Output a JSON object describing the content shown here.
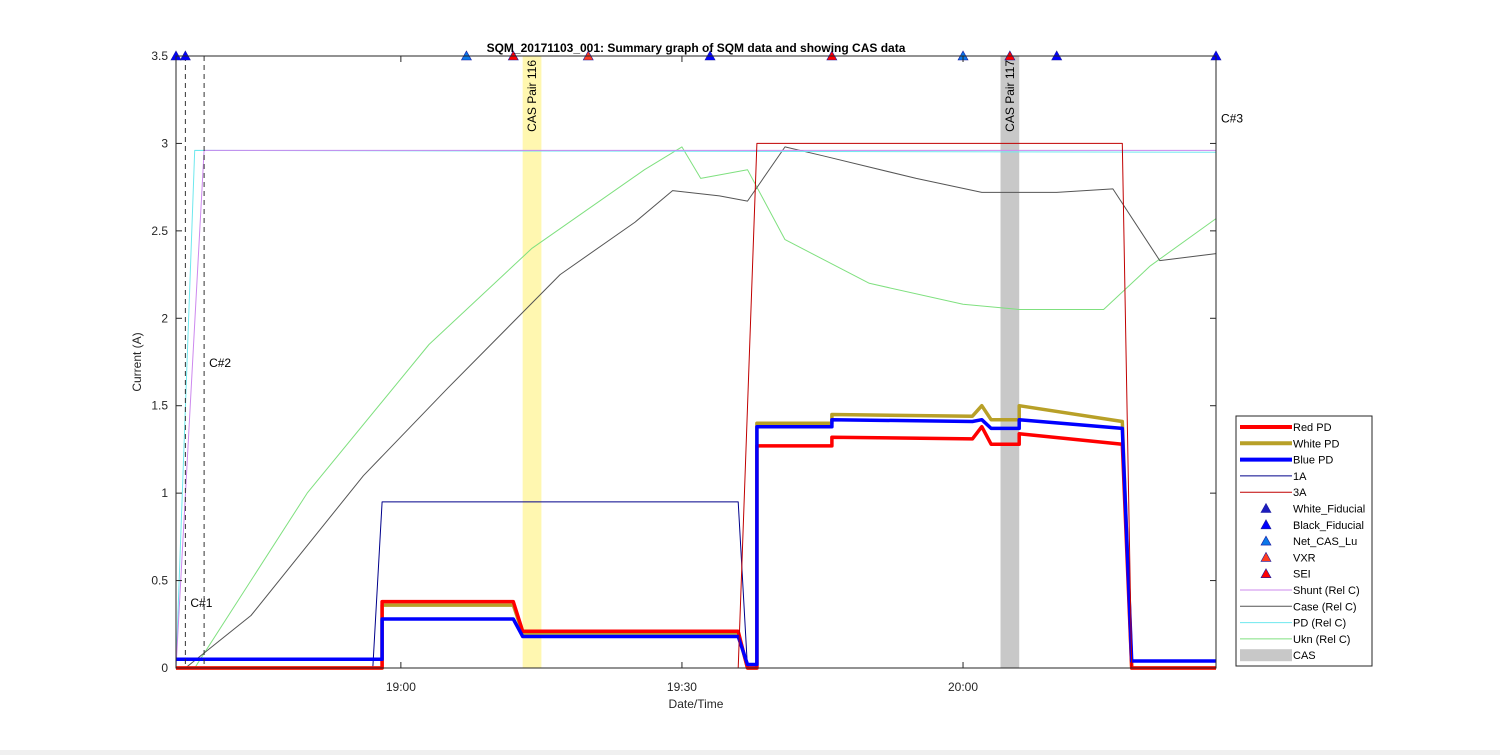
{
  "chart_data": {
    "type": "line",
    "title": "SQM_20171103_001: Summary graph of SQM data and showing CAS data",
    "xlabel": "Date/Time",
    "ylabel": "Current (A)",
    "x_unit": "time (HH:MM)",
    "xlim": [
      "18:36",
      "20:27"
    ],
    "ylim": [
      0,
      3.5
    ],
    "yticks": [
      0,
      0.5,
      1,
      1.5,
      2,
      2.5,
      3,
      3.5
    ],
    "ytick_labels": [
      "0",
      "0.5",
      "1",
      "1.5",
      "2",
      "2.5",
      "3",
      "3.5"
    ],
    "xticks": [
      "19:00",
      "19:30",
      "20:00"
    ],
    "grid": false,
    "legend_position": "right, outside",
    "legend": [
      {
        "label": "Red PD",
        "kind": "thick-line",
        "color": "#ff0000"
      },
      {
        "label": "White PD",
        "kind": "thick-line",
        "color": "#b8a028"
      },
      {
        "label": "Blue PD",
        "kind": "thick-line",
        "color": "#0000ff"
      },
      {
        "label": "1A",
        "kind": "thin-line",
        "color": "#00008b"
      },
      {
        "label": "3A",
        "kind": "thin-line",
        "color": "#c00000"
      },
      {
        "label": "White_Fiducial",
        "kind": "marker",
        "color": "#1c1cbe"
      },
      {
        "label": "Black_Fiducial",
        "kind": "marker",
        "color": "#0000ff"
      },
      {
        "label": "Net_CAS_Lu",
        "kind": "marker",
        "color": "#0b78e8"
      },
      {
        "label": "VXR",
        "kind": "marker",
        "color": "#ff3b1f"
      },
      {
        "label": "SEI",
        "kind": "marker",
        "color": "#ff0000"
      },
      {
        "label": "Shunt (Rel C)",
        "kind": "thin-line",
        "color": "#cc88ee"
      },
      {
        "label": "Case (Rel C)",
        "kind": "thin-line",
        "color": "#555555"
      },
      {
        "label": "PD (Rel C)",
        "kind": "thin-line",
        "color": "#6ee8ee"
      },
      {
        "label": "Ukn (Rel C)",
        "kind": "thin-line",
        "color": "#7fe07f"
      },
      {
        "label": "CAS",
        "kind": "patch",
        "color": "#c8c8c8"
      }
    ],
    "cas_bands": [
      {
        "label": "CAS Pair 116",
        "x_start": "19:13",
        "x_end": "19:15",
        "color": "#fff7b0"
      },
      {
        "label": "CAS Pair 117",
        "x_start": "20:04",
        "x_end": "20:06",
        "color": "#c8c8c8"
      }
    ],
    "vertical_markers": [
      {
        "label": "C#1",
        "x": "18:37",
        "label_y": 0.35
      },
      {
        "label": "C#2",
        "x": "18:39",
        "label_y": 1.72
      },
      {
        "label": "C#3",
        "x": "20:27",
        "label_y": 3.12
      }
    ],
    "fiducial_markers": [
      {
        "x": "18:36",
        "series": "Black_Fiducial",
        "y": 3.5
      },
      {
        "x": "18:37",
        "series": "Black_Fiducial",
        "y": 3.5
      },
      {
        "x": "19:07",
        "series": "Net_CAS_Lu",
        "y": 3.5
      },
      {
        "x": "19:12",
        "series": "SEI",
        "y": 3.5
      },
      {
        "x": "19:20",
        "series": "VXR",
        "y": 3.5
      },
      {
        "x": "19:33",
        "series": "Black_Fiducial",
        "y": 3.5
      },
      {
        "x": "19:46",
        "series": "SEI",
        "y": 3.5
      },
      {
        "x": "20:00",
        "series": "Net_CAS_Lu",
        "y": 3.5
      },
      {
        "x": "20:05",
        "series": "SEI",
        "y": 3.5
      },
      {
        "x": "20:10",
        "series": "Black_Fiducial",
        "y": 3.5
      },
      {
        "x": "20:27",
        "series": "Black_Fiducial",
        "y": 3.5
      }
    ],
    "series": [
      {
        "name": "Red PD",
        "x": [
          "18:36",
          "18:58",
          "18:58",
          "19:12",
          "19:13",
          "19:36",
          "19:37",
          "19:38",
          "19:38",
          "19:46",
          "19:46",
          "20:01",
          "20:02",
          "20:03",
          "20:04",
          "20:06",
          "20:06",
          "20:17",
          "20:18",
          "20:27"
        ],
        "y": [
          0.0,
          0.0,
          0.38,
          0.38,
          0.21,
          0.21,
          0.0,
          0.0,
          1.27,
          1.27,
          1.32,
          1.31,
          1.38,
          1.28,
          1.28,
          1.28,
          1.34,
          1.28,
          0.0,
          0.0
        ]
      },
      {
        "name": "White PD",
        "x": [
          "18:36",
          "18:58",
          "18:58",
          "19:12",
          "19:13",
          "19:36",
          "19:37",
          "19:38",
          "19:38",
          "19:46",
          "19:46",
          "20:01",
          "20:02",
          "20:03",
          "20:04",
          "20:06",
          "20:06",
          "20:17",
          "20:18",
          "20:27"
        ],
        "y": [
          0.0,
          0.0,
          0.36,
          0.36,
          0.2,
          0.2,
          0.0,
          0.0,
          1.4,
          1.4,
          1.45,
          1.44,
          1.5,
          1.42,
          1.42,
          1.42,
          1.5,
          1.41,
          0.0,
          0.0
        ]
      },
      {
        "name": "Blue PD",
        "x": [
          "18:36",
          "18:58",
          "18:58",
          "19:12",
          "19:13",
          "19:36",
          "19:37",
          "19:38",
          "19:38",
          "19:46",
          "19:46",
          "20:01",
          "20:02",
          "20:03",
          "20:04",
          "20:06",
          "20:06",
          "20:17",
          "20:18",
          "20:27"
        ],
        "y": [
          0.05,
          0.05,
          0.28,
          0.28,
          0.18,
          0.18,
          0.02,
          0.02,
          1.38,
          1.38,
          1.42,
          1.41,
          1.42,
          1.37,
          1.37,
          1.37,
          1.42,
          1.37,
          0.04,
          0.04
        ]
      },
      {
        "name": "1A",
        "x": [
          "18:36",
          "18:57",
          "18:58",
          "19:36",
          "19:37",
          "20:27"
        ],
        "y": [
          0.0,
          0.0,
          0.95,
          0.95,
          0.0,
          0.0
        ]
      },
      {
        "name": "3A",
        "x": [
          "18:36",
          "19:36",
          "19:38",
          "20:17",
          "20:18",
          "20:27"
        ],
        "y": [
          0.0,
          0.0,
          3.0,
          3.0,
          0.0,
          0.0
        ]
      },
      {
        "name": "Shunt (Rel C)",
        "x": [
          "18:36",
          "18:39",
          "20:27"
        ],
        "y": [
          0.0,
          2.96,
          2.96
        ]
      },
      {
        "name": "Case (Rel C)",
        "x": [
          "18:37",
          "18:44",
          "18:56",
          "19:05",
          "19:17",
          "19:25",
          "19:29",
          "19:34",
          "19:37",
          "19:41",
          "19:45",
          "19:55",
          "20:02",
          "20:10",
          "20:16",
          "20:21",
          "20:27"
        ],
        "y": [
          0.0,
          0.3,
          1.1,
          1.6,
          2.25,
          2.55,
          2.73,
          2.7,
          2.67,
          2.98,
          2.93,
          2.8,
          2.72,
          2.72,
          2.74,
          2.33,
          2.37
        ]
      },
      {
        "name": "PD (Rel C)",
        "x": [
          "18:36",
          "18:38",
          "20:27"
        ],
        "y": [
          0.0,
          2.96,
          2.95
        ]
      },
      {
        "name": "Ukn (Rel C)",
        "x": [
          "18:38",
          "18:50",
          "19:03",
          "19:14",
          "19:26",
          "19:30",
          "19:32",
          "19:37",
          "19:41",
          "19:50",
          "20:00",
          "20:06",
          "20:12",
          "20:15",
          "20:20",
          "20:27"
        ],
        "y": [
          0.0,
          1.0,
          1.85,
          2.4,
          2.85,
          2.98,
          2.8,
          2.85,
          2.45,
          2.2,
          2.08,
          2.05,
          2.05,
          2.05,
          2.3,
          2.57
        ]
      }
    ]
  }
}
